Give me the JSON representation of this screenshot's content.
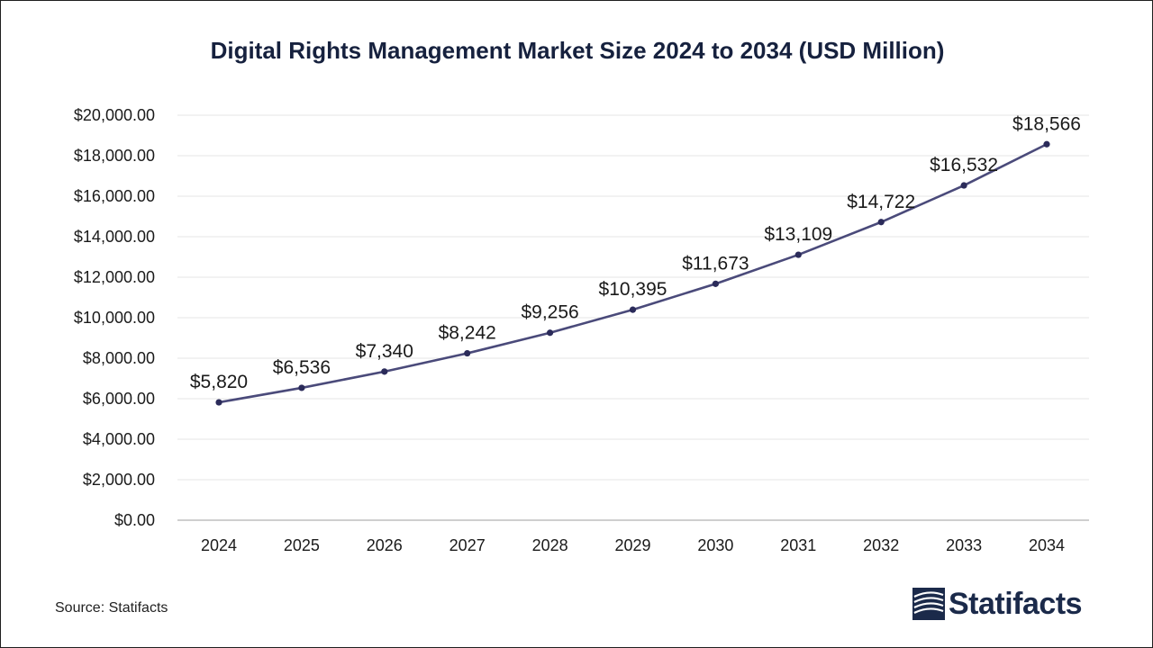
{
  "colors": {
    "line": "#4a4a7a",
    "marker": "#2b2b5a",
    "title": "#16213e",
    "grid": "#e6e6e6",
    "axis": "#bfbfbf",
    "brand": "#1b2a4a"
  },
  "footer": {
    "source": "Source: Statifacts",
    "brand_name": "Statifacts",
    "brand_icon": "statifacts-logo-icon"
  },
  "chart_data": {
    "type": "line",
    "title": "Digital Rights Management Market Size 2024 to 2034 (USD Million)",
    "xlabel": "",
    "ylabel": "",
    "categories": [
      "2024",
      "2025",
      "2026",
      "2027",
      "2028",
      "2029",
      "2030",
      "2031",
      "2032",
      "2033",
      "2034"
    ],
    "series": [
      {
        "values": [
          5820,
          6536,
          7340,
          8242,
          9256,
          10395,
          11673,
          13109,
          14722,
          16532,
          18566
        ],
        "data_labels": [
          "$5,820",
          "$6,536",
          "$7,340",
          "$8,242",
          "$9,256",
          "$10,395",
          "$11,673",
          "$13,109",
          "$14,722",
          "$16,532",
          "$18,566"
        ]
      }
    ],
    "ylim": [
      0,
      20000
    ],
    "yticks": [
      0,
      2000,
      4000,
      6000,
      8000,
      10000,
      12000,
      14000,
      16000,
      18000,
      20000
    ],
    "ytick_labels": [
      "$0.00",
      "$2,000.00",
      "$4,000.00",
      "$6,000.00",
      "$8,000.00",
      "$10,000.00",
      "$12,000.00",
      "$14,000.00",
      "$16,000.00",
      "$18,000.00",
      "$20,000.00"
    ],
    "grid": true,
    "legend": "none"
  }
}
